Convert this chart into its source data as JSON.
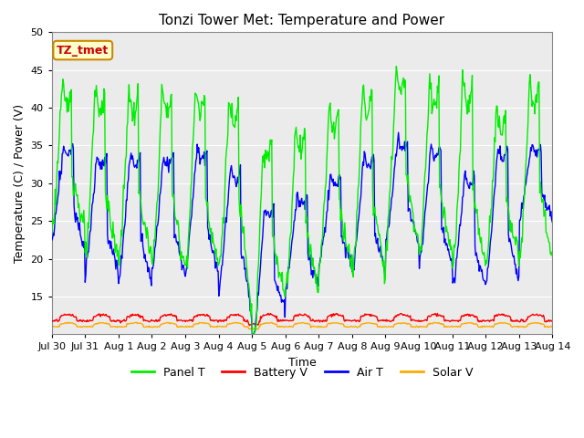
{
  "title": "Tonzi Tower Met: Temperature and Power",
  "xlabel": "Time",
  "ylabel": "Temperature (C) / Power (V)",
  "ylim": [
    10,
    50
  ],
  "yticks": [
    15,
    20,
    25,
    30,
    35,
    40,
    45,
    50
  ],
  "xlim_days": [
    0,
    15
  ],
  "xtick_labels": [
    "Jul 30",
    "Jul 31",
    "Aug 1",
    "Aug 2",
    "Aug 3",
    "Aug 4",
    "Aug 5",
    "Aug 6",
    "Aug 7",
    "Aug 8",
    "Aug 9",
    "Aug 10",
    "Aug 11",
    "Aug 12",
    "Aug 13",
    "Aug 14"
  ],
  "xtick_positions": [
    0,
    1,
    2,
    3,
    4,
    5,
    6,
    7,
    8,
    9,
    10,
    11,
    12,
    13,
    14,
    15
  ],
  "panel_t_color": "#00ee00",
  "battery_v_color": "#ff0000",
  "air_t_color": "#0000ff",
  "solar_v_color": "#ffaa00",
  "bg_color": "#e8e8e8",
  "plot_bg_color": "#ebebeb",
  "annotation_text": "TZ_tmet",
  "annotation_bg": "#ffffcc",
  "annotation_border": "#cc8800",
  "annotation_text_color": "#cc0000",
  "legend_labels": [
    "Panel T",
    "Battery V",
    "Air T",
    "Solar V"
  ],
  "title_fontsize": 11,
  "axis_fontsize": 9,
  "tick_fontsize": 8,
  "legend_fontsize": 9
}
